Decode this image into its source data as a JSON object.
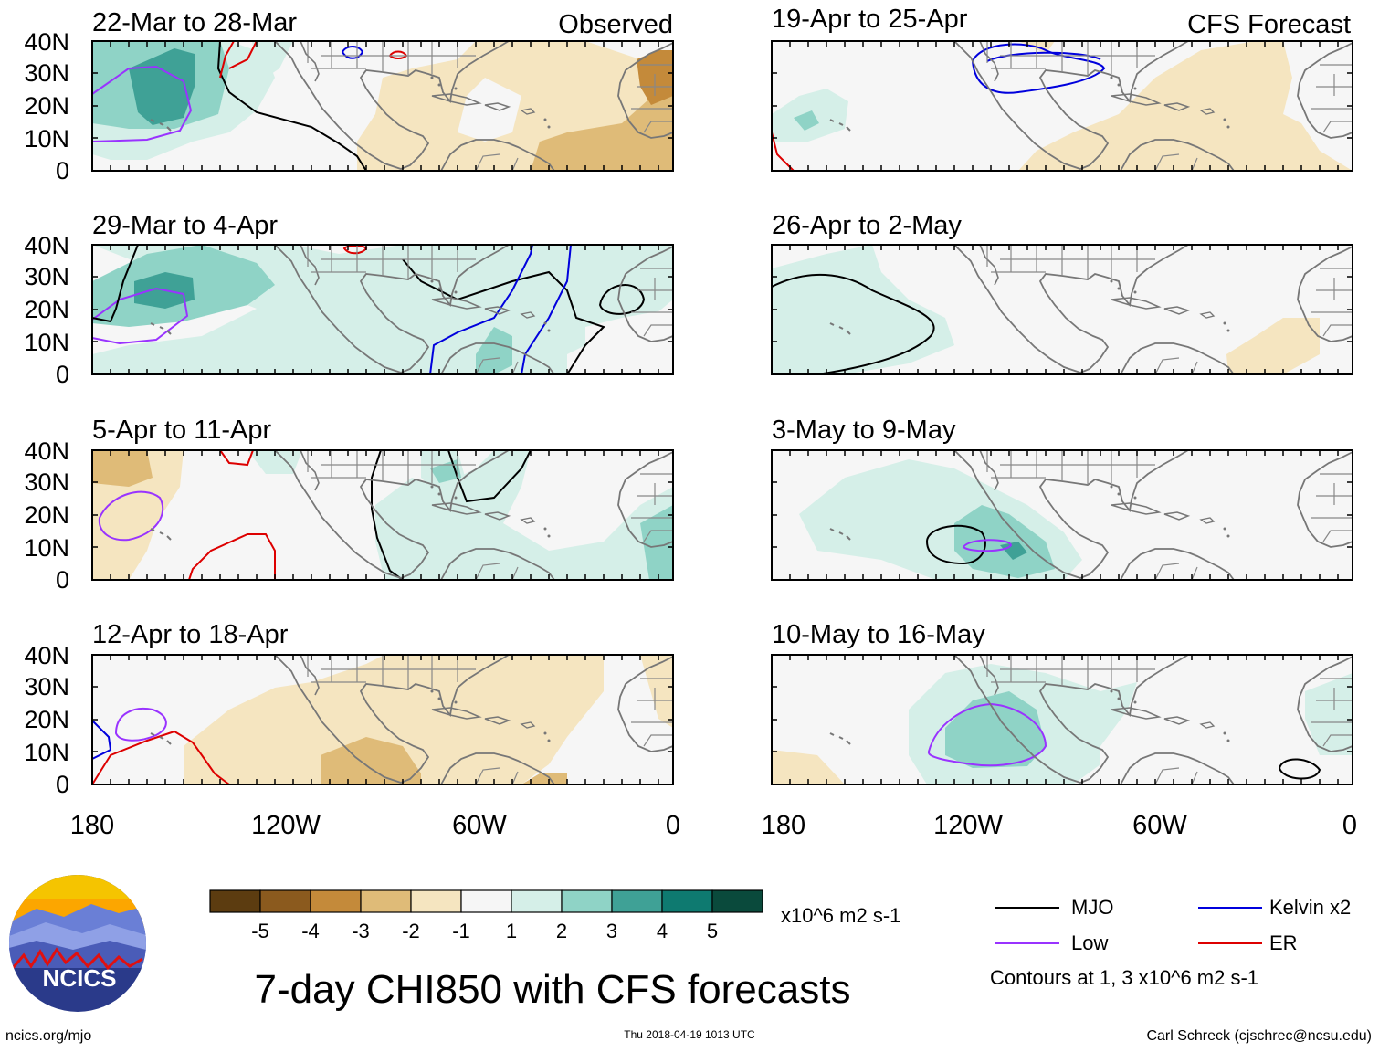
{
  "headers": {
    "observed": "Observed",
    "forecast": "CFS Forecast"
  },
  "panels": [
    {
      "title": "22-Mar to 28-Mar"
    },
    {
      "title": "29-Mar to 4-Apr"
    },
    {
      "title": "5-Apr to 11-Apr"
    },
    {
      "title": "12-Apr to 18-Apr"
    },
    {
      "title": "19-Apr to 25-Apr"
    },
    {
      "title": "26-Apr to 2-May"
    },
    {
      "title": "3-May to 9-May"
    },
    {
      "title": "10-May to 16-May"
    }
  ],
  "lat_labels": [
    "40N",
    "30N",
    "20N",
    "10N",
    "0"
  ],
  "lon_labels": [
    "180",
    "120W",
    "60W",
    "0"
  ],
  "colorbar": {
    "colors": [
      "#5c3c10",
      "#8b5a1e",
      "#c48a3a",
      "#dfbb78",
      "#f5e5c0",
      "#f6f6f6",
      "#d5efe8",
      "#8fd3c6",
      "#3fa196",
      "#0e7a70",
      "#0a4a3c"
    ],
    "tick_labels": [
      "-5",
      "-4",
      "-3",
      "-2",
      "-1",
      "1",
      "2",
      "3",
      "4",
      "5"
    ],
    "units": "x10^6 m2 s-1"
  },
  "legend": {
    "items": [
      {
        "label": "MJO",
        "color": "#000000"
      },
      {
        "label": "Kelvin x2",
        "color": "#0000dd"
      },
      {
        "label": "Low",
        "color": "#9933ff"
      },
      {
        "label": "ER",
        "color": "#dd0000"
      }
    ],
    "note": "Contours at 1, 3 x10^6 m2 s-1"
  },
  "main_title": "7-day CHI850 with CFS forecasts",
  "logo_text": "NCICS",
  "footer": {
    "left": "ncics.org/mjo",
    "center": "Thu 2018-04-19 1013 UTC",
    "right": "Carl Schreck (cjschrec@ncsu.edu)"
  }
}
